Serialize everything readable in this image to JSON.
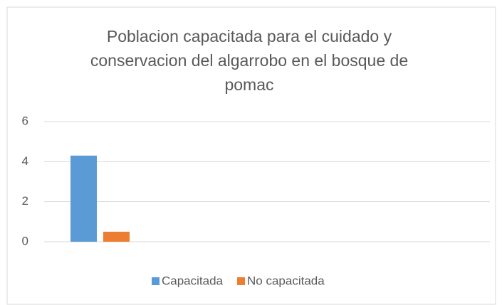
{
  "chart_data": {
    "type": "bar",
    "title": "Poblacion capacitada para el cuidado y conservacion del algarrobo en el bosque de pomac",
    "categories": [
      null
    ],
    "series": [
      {
        "name": "Capacitada",
        "color": "#5b9bd5",
        "values": [
          4.3
        ]
      },
      {
        "name": "No capacitada",
        "color": "#ed7d31",
        "values": [
          0.5
        ]
      }
    ],
    "ylim": [
      0,
      6
    ],
    "yticks": [
      0,
      2,
      4,
      6
    ],
    "grid": true,
    "legend": "bottom"
  }
}
